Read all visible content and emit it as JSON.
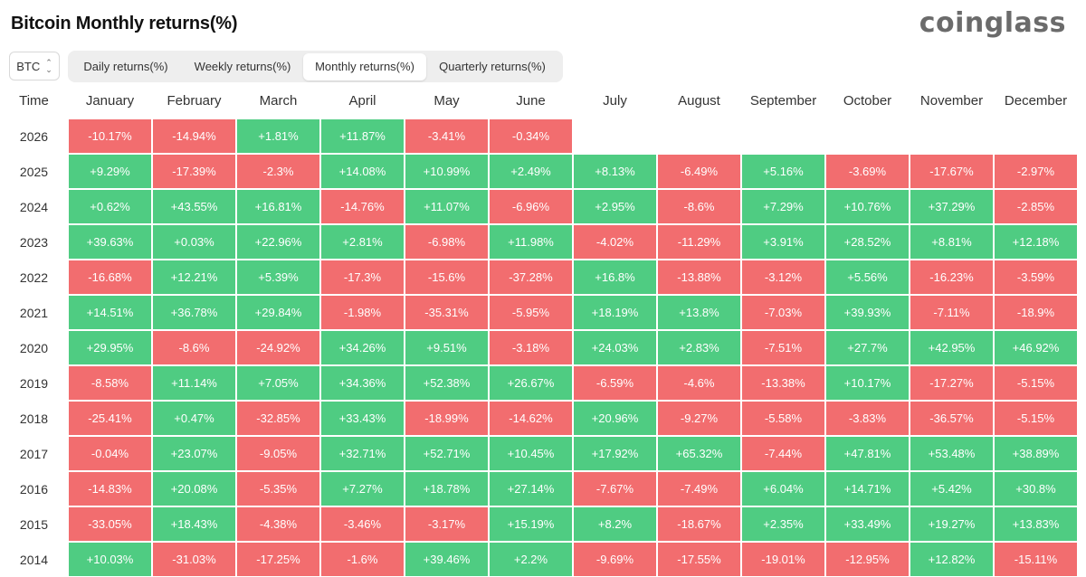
{
  "title": "Bitcoin Monthly returns(%)",
  "brand": "coinglass",
  "asset_selector": {
    "value": "BTC"
  },
  "tabs": [
    {
      "label": "Daily returns(%)",
      "active": false
    },
    {
      "label": "Weekly returns(%)",
      "active": false
    },
    {
      "label": "Monthly returns(%)",
      "active": true
    },
    {
      "label": "Quarterly returns(%)",
      "active": false
    }
  ],
  "colors": {
    "positive": "#4fcc82",
    "negative": "#f26d6f"
  },
  "table": {
    "year_header": "Time",
    "months": [
      "January",
      "February",
      "March",
      "April",
      "May",
      "June",
      "July",
      "August",
      "September",
      "October",
      "November",
      "December"
    ],
    "rows": [
      {
        "year": "2026",
        "values": [
          "-10.17%",
          "-14.94%",
          "+1.81%",
          "+11.87%",
          "-3.41%",
          "-0.34%",
          "",
          "",
          "",
          "",
          "",
          ""
        ]
      },
      {
        "year": "2025",
        "values": [
          "+9.29%",
          "-17.39%",
          "-2.3%",
          "+14.08%",
          "+10.99%",
          "+2.49%",
          "+8.13%",
          "-6.49%",
          "+5.16%",
          "-3.69%",
          "-17.67%",
          "-2.97%"
        ]
      },
      {
        "year": "2024",
        "values": [
          "+0.62%",
          "+43.55%",
          "+16.81%",
          "-14.76%",
          "+11.07%",
          "-6.96%",
          "+2.95%",
          "-8.6%",
          "+7.29%",
          "+10.76%",
          "+37.29%",
          "-2.85%"
        ]
      },
      {
        "year": "2023",
        "values": [
          "+39.63%",
          "+0.03%",
          "+22.96%",
          "+2.81%",
          "-6.98%",
          "+11.98%",
          "-4.02%",
          "-11.29%",
          "+3.91%",
          "+28.52%",
          "+8.81%",
          "+12.18%"
        ]
      },
      {
        "year": "2022",
        "values": [
          "-16.68%",
          "+12.21%",
          "+5.39%",
          "-17.3%",
          "-15.6%",
          "-37.28%",
          "+16.8%",
          "-13.88%",
          "-3.12%",
          "+5.56%",
          "-16.23%",
          "-3.59%"
        ]
      },
      {
        "year": "2021",
        "values": [
          "+14.51%",
          "+36.78%",
          "+29.84%",
          "-1.98%",
          "-35.31%",
          "-5.95%",
          "+18.19%",
          "+13.8%",
          "-7.03%",
          "+39.93%",
          "-7.11%",
          "-18.9%"
        ]
      },
      {
        "year": "2020",
        "values": [
          "+29.95%",
          "-8.6%",
          "-24.92%",
          "+34.26%",
          "+9.51%",
          "-3.18%",
          "+24.03%",
          "+2.83%",
          "-7.51%",
          "+27.7%",
          "+42.95%",
          "+46.92%"
        ]
      },
      {
        "year": "2019",
        "values": [
          "-8.58%",
          "+11.14%",
          "+7.05%",
          "+34.36%",
          "+52.38%",
          "+26.67%",
          "-6.59%",
          "-4.6%",
          "-13.38%",
          "+10.17%",
          "-17.27%",
          "-5.15%"
        ]
      },
      {
        "year": "2018",
        "values": [
          "-25.41%",
          "+0.47%",
          "-32.85%",
          "+33.43%",
          "-18.99%",
          "-14.62%",
          "+20.96%",
          "-9.27%",
          "-5.58%",
          "-3.83%",
          "-36.57%",
          "-5.15%"
        ]
      },
      {
        "year": "2017",
        "values": [
          "-0.04%",
          "+23.07%",
          "-9.05%",
          "+32.71%",
          "+52.71%",
          "+10.45%",
          "+17.92%",
          "+65.32%",
          "-7.44%",
          "+47.81%",
          "+53.48%",
          "+38.89%"
        ]
      },
      {
        "year": "2016",
        "values": [
          "-14.83%",
          "+20.08%",
          "-5.35%",
          "+7.27%",
          "+18.78%",
          "+27.14%",
          "-7.67%",
          "-7.49%",
          "+6.04%",
          "+14.71%",
          "+5.42%",
          "+30.8%"
        ]
      },
      {
        "year": "2015",
        "values": [
          "-33.05%",
          "+18.43%",
          "-4.38%",
          "-3.46%",
          "-3.17%",
          "+15.19%",
          "+8.2%",
          "-18.67%",
          "+2.35%",
          "+33.49%",
          "+19.27%",
          "+13.83%"
        ]
      },
      {
        "year": "2014",
        "values": [
          "+10.03%",
          "-31.03%",
          "-17.25%",
          "-1.6%",
          "+39.46%",
          "+2.2%",
          "-9.69%",
          "-17.55%",
          "-19.01%",
          "-12.95%",
          "+12.82%",
          "-15.11%"
        ]
      }
    ]
  }
}
